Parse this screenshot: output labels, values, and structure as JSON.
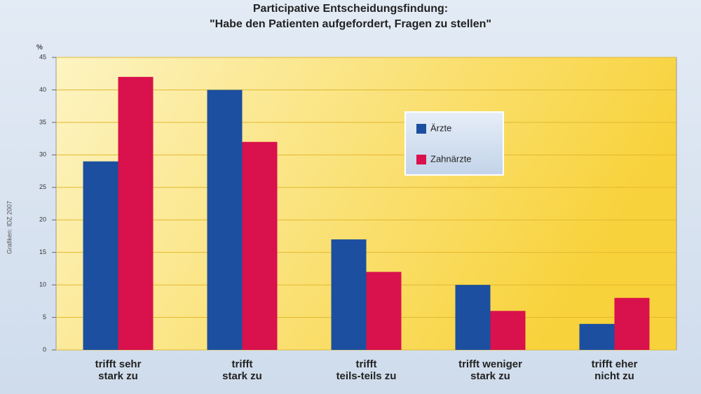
{
  "chart_data": {
    "type": "bar",
    "title": "Participative Entscheidungsfindung:",
    "subtitle": "\"Habe den Patienten aufgefordert, Fragen zu stellen\"",
    "y_unit": "%",
    "source": "Grafiken: IDZ 2007",
    "categories": [
      "trifft sehr\nstark zu",
      "trifft\nstark zu",
      "trifft\nteils-teils zu",
      "trifft weniger\nstark zu",
      "trifft eher\nnicht zu"
    ],
    "series": [
      {
        "name": "Ärzte",
        "color": "#1c4f9f",
        "values": [
          29,
          40,
          17,
          10,
          4
        ]
      },
      {
        "name": "Zahnärzte",
        "color": "#d9114c",
        "values": [
          42,
          32,
          12,
          6,
          8
        ]
      }
    ],
    "ylim": [
      0,
      45
    ],
    "yticks": [
      0,
      5,
      10,
      15,
      20,
      25,
      30,
      35,
      40,
      45
    ],
    "grid": true,
    "legend": "upper-right"
  }
}
